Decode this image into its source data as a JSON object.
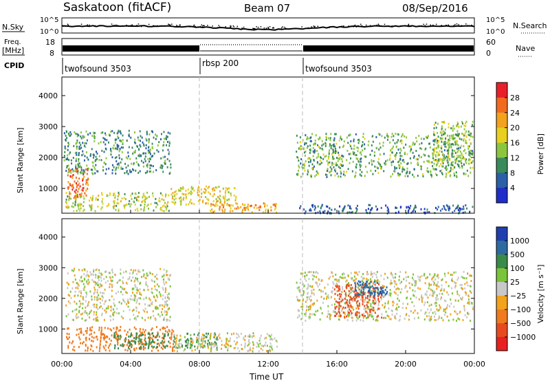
{
  "header": {
    "site": "Saskatoon (fitACF)",
    "beam": "Beam 07",
    "date": "08/Sep/2016"
  },
  "noise_panel": {
    "left_label": "N.Sky",
    "left_ticks": [
      "10^5",
      "10^0"
    ],
    "right_label": "N.Search",
    "right_ticks": [
      "10^5",
      "10^0"
    ]
  },
  "freq_panel": {
    "left_label_1": "Freq.",
    "left_label_2": "[MHz]",
    "left_ticks": [
      "18",
      "8"
    ],
    "right_label": "Nave",
    "right_ticks": [
      "60",
      "0"
    ]
  },
  "cpid_panel": {
    "label": "CPID",
    "segments": [
      {
        "name": "twofsound 3503",
        "start_h": 0
      },
      {
        "name": "rbsp 200",
        "start_h": 8
      },
      {
        "name": "twofsound 3503",
        "start_h": 14
      }
    ]
  },
  "power_panel": {
    "ylabel": "Slant Range [km]",
    "colorbar_label": "Power [dB]",
    "colorbar_ticks": [
      "28",
      "24",
      "20",
      "16",
      "12",
      "8",
      "4"
    ],
    "colorbar_colors": [
      "#e8202a",
      "#f26a1e",
      "#f2a21c",
      "#e8d020",
      "#8cc63f",
      "#3a8a5a",
      "#2b5fa8",
      "#1f2ec8"
    ]
  },
  "velocity_panel": {
    "ylabel": "Slant Range [km]",
    "colorbar_label": "Velocity [m s⁻¹]",
    "colorbar_ticks": [
      "1000",
      "500",
      "100",
      "25",
      "−25",
      "−100",
      "−500",
      "−1000"
    ],
    "colorbar_colors": [
      "#1f3fb0",
      "#2e6aa0",
      "#3a8a4a",
      "#7ac43a",
      "#c8c8c8",
      "#f2a21c",
      "#f07a1e",
      "#e84a20",
      "#e82020"
    ]
  },
  "chart_data": {
    "type": "heatmap",
    "title": "Saskatoon (fitACF)",
    "xlabel": "Time UT",
    "ylabel": "Slant Range [km]",
    "x_ticks": [
      "00:00",
      "04:00",
      "08:00",
      "12:00",
      "16:00",
      "20:00",
      "00:00"
    ],
    "y_ticks": [
      "1000",
      "2000",
      "3000",
      "4000"
    ],
    "xlim_hours": [
      0,
      24
    ],
    "ylim_km": [
      200,
      4600
    ],
    "mode_changes_h": [
      8,
      14
    ],
    "power_regions": [
      {
        "t0": 0.3,
        "t1": 1.5,
        "r0": 700,
        "r1": 1700,
        "level": 26
      },
      {
        "t0": 0.2,
        "t1": 6.2,
        "r0": 300,
        "r1": 900,
        "level": 16
      },
      {
        "t0": 0.1,
        "t1": 6.3,
        "r0": 1500,
        "r1": 2900,
        "level": 10
      },
      {
        "t0": 6.3,
        "t1": 10.2,
        "r0": 500,
        "r1": 1100,
        "level": 18
      },
      {
        "t0": 8.5,
        "t1": 12.5,
        "r0": 250,
        "r1": 550,
        "level": 22
      },
      {
        "t0": 13.6,
        "t1": 23.9,
        "r0": 1400,
        "r1": 2800,
        "level": 12
      },
      {
        "t0": 21.5,
        "t1": 23.9,
        "r0": 1700,
        "r1": 3200,
        "level": 14
      },
      {
        "t0": 13.8,
        "t1": 23.9,
        "r0": 220,
        "r1": 500,
        "level": 6
      }
    ],
    "velocity_regions": [
      {
        "t0": 0.2,
        "t1": 6.3,
        "r0": 1300,
        "r1": 3000,
        "vel": 0
      },
      {
        "t0": 0.2,
        "t1": 6.5,
        "r0": 300,
        "r1": 1100,
        "vel": -150
      },
      {
        "t0": 3.0,
        "t1": 9.0,
        "r0": 400,
        "r1": 900,
        "vel": 150
      },
      {
        "t0": 6.5,
        "t1": 12.5,
        "r0": 300,
        "r1": 900,
        "vel": 0
      },
      {
        "t0": 13.6,
        "t1": 23.9,
        "r0": 1300,
        "r1": 2900,
        "vel": 0
      },
      {
        "t0": 15.8,
        "t1": 18.6,
        "r0": 1400,
        "r1": 2500,
        "vel": -600
      },
      {
        "t0": 17.0,
        "t1": 18.9,
        "r0": 2100,
        "r1": 2600,
        "vel": 700
      }
    ]
  }
}
